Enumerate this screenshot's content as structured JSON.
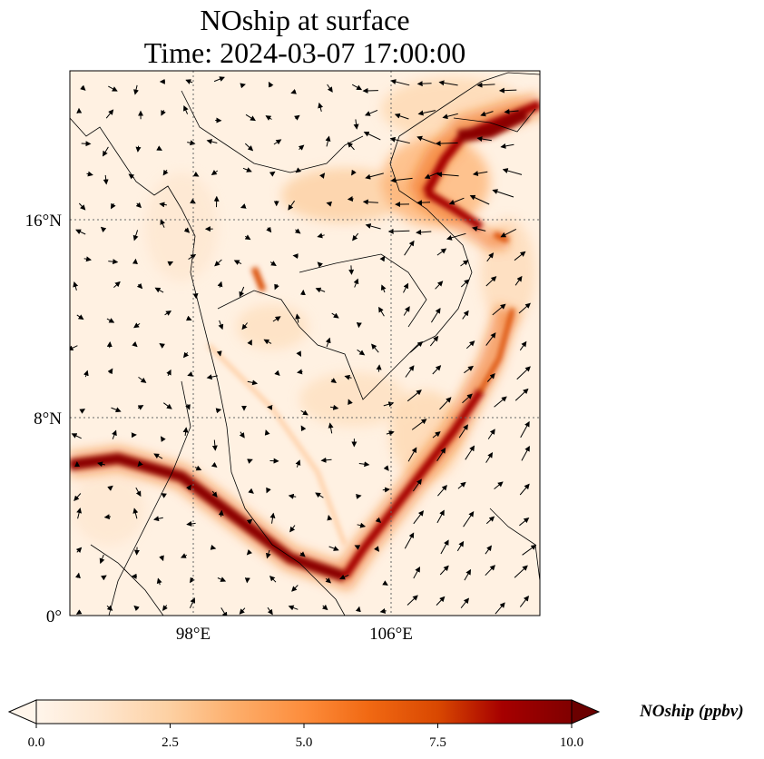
{
  "title": {
    "line1": "NOship at surface",
    "line2": "Time: 2024-03-07 17:00:00"
  },
  "map": {
    "projection": "PlateCarree",
    "lon_range": [
      93,
      112
    ],
    "lat_range": [
      0,
      22
    ],
    "gridlines": "dotted",
    "lon_ticks": [
      {
        "value": 98,
        "label": "98°E"
      },
      {
        "value": 106,
        "label": "106°E"
      }
    ],
    "lat_ticks": [
      {
        "value": 0,
        "label": "0°"
      },
      {
        "value": 8,
        "label": "8°N"
      },
      {
        "value": 16,
        "label": "16°N"
      }
    ],
    "colormap": [
      "#fff5eb",
      "#fee6ce",
      "#fdd0a2",
      "#fdae6b",
      "#fd8d3c",
      "#f16913",
      "#d94801",
      "#a60000",
      "#6b0000"
    ]
  },
  "colorbar": {
    "label": "NOship (ppbv)",
    "vmin": 0.0,
    "vmax": 10.0,
    "extend": "both",
    "ticks": [
      {
        "value": 0,
        "label": "0.0"
      },
      {
        "value": 2.5,
        "label": "2.5"
      },
      {
        "value": 5,
        "label": "5.0"
      },
      {
        "value": 7.5,
        "label": "7.5"
      },
      {
        "value": 10,
        "label": "10.0"
      }
    ]
  }
}
